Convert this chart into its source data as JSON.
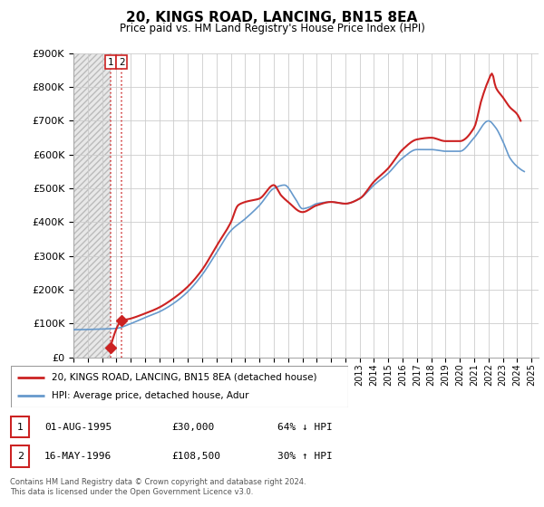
{
  "title": "20, KINGS ROAD, LANCING, BN15 8EA",
  "subtitle": "Price paid vs. HM Land Registry's House Price Index (HPI)",
  "legend_line1": "20, KINGS ROAD, LANCING, BN15 8EA (detached house)",
  "legend_line2": "HPI: Average price, detached house, Adur",
  "footnote": "Contains HM Land Registry data © Crown copyright and database right 2024.\nThis data is licensed under the Open Government Licence v3.0.",
  "transaction1_label": "1",
  "transaction1_date": "01-AUG-1995",
  "transaction1_price": "£30,000",
  "transaction1_hpi": "64% ↓ HPI",
  "transaction2_label": "2",
  "transaction2_date": "16-MAY-1996",
  "transaction2_price": "£108,500",
  "transaction2_hpi": "30% ↑ HPI",
  "sale1_x": 1995.58,
  "sale1_y": 30000,
  "sale2_x": 1996.37,
  "sale2_y": 108500,
  "hpi_color": "#6699cc",
  "price_color": "#cc2222",
  "sale_marker_color": "#cc2222",
  "grid_color": "#cccccc",
  "xmin": 1993.0,
  "xmax": 2025.5,
  "ymin": 0,
  "ymax": 900000,
  "yticks": [
    0,
    100000,
    200000,
    300000,
    400000,
    500000,
    600000,
    700000,
    800000,
    900000
  ],
  "xticks": [
    1993,
    1994,
    1995,
    1996,
    1997,
    1998,
    1999,
    2000,
    2001,
    2002,
    2003,
    2004,
    2005,
    2006,
    2007,
    2008,
    2009,
    2010,
    2011,
    2012,
    2013,
    2014,
    2015,
    2016,
    2017,
    2018,
    2019,
    2020,
    2021,
    2022,
    2023,
    2024,
    2025
  ]
}
